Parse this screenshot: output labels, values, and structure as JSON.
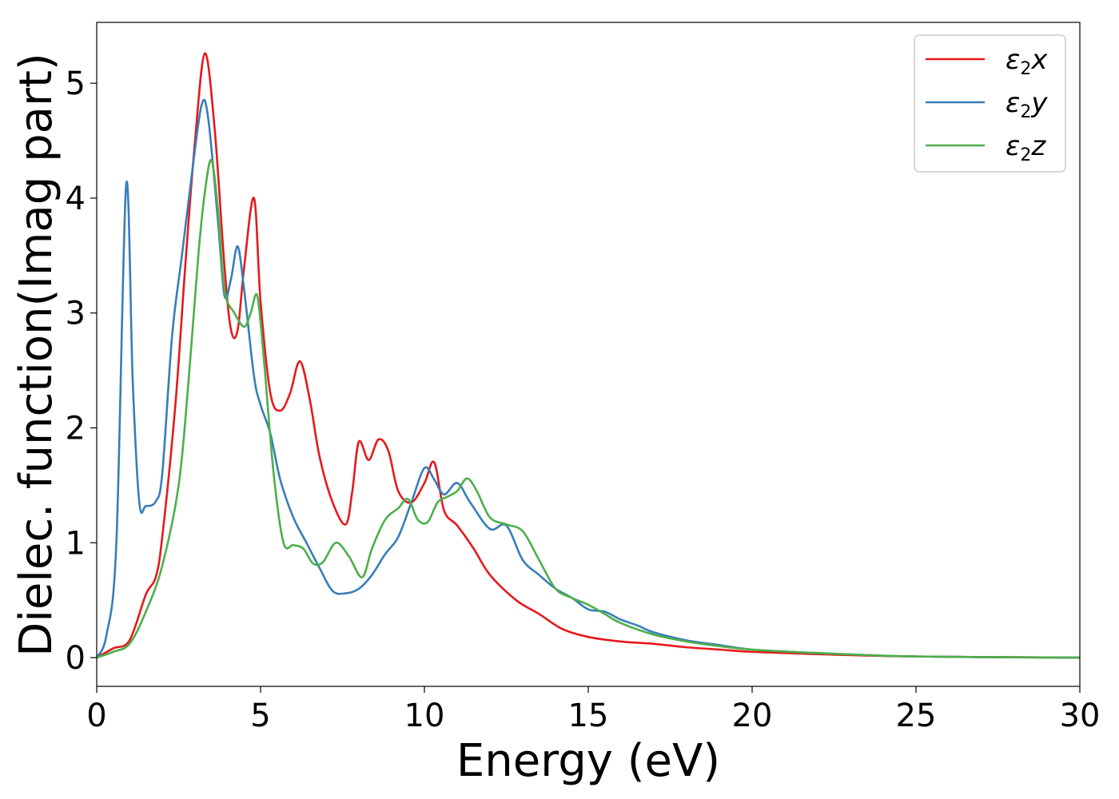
{
  "chart_data": {
    "type": "line",
    "title": "",
    "xlabel": "Energy (eV)",
    "ylabel": "Dielec. function(Imag part)",
    "xlim": [
      0,
      30
    ],
    "ylim": [
      -0.25,
      5.53
    ],
    "xticks": [
      0,
      5,
      10,
      15,
      20,
      25,
      30
    ],
    "yticks": [
      0,
      1,
      2,
      3,
      4,
      5
    ],
    "grid": false,
    "legend_position": "top-right",
    "series": [
      {
        "name": "ε2x",
        "legend_base": "ε",
        "legend_sub": "2",
        "legend_var": "x",
        "color": "#e41a1c",
        "x": [
          0,
          0.5,
          1.0,
          1.5,
          1.8,
          2.0,
          2.4,
          2.7,
          3.0,
          3.3,
          3.6,
          3.9,
          4.1,
          4.3,
          4.5,
          4.8,
          5.0,
          5.3,
          5.6,
          5.9,
          6.2,
          6.5,
          6.8,
          7.2,
          7.6,
          7.8,
          8.0,
          8.3,
          8.6,
          8.9,
          9.2,
          9.6,
          10.0,
          10.3,
          10.6,
          11.0,
          11.5,
          12.0,
          12.8,
          13.5,
          14.2,
          15.0,
          16.0,
          17.0,
          18.0,
          19.0,
          20.0,
          22.0,
          25.0,
          30.0
        ],
        "y": [
          0,
          0.08,
          0.15,
          0.55,
          0.7,
          1.05,
          2.2,
          3.4,
          4.5,
          5.26,
          4.6,
          3.4,
          2.85,
          2.85,
          3.4,
          4.0,
          3.1,
          2.3,
          2.15,
          2.3,
          2.58,
          2.25,
          1.75,
          1.35,
          1.16,
          1.45,
          1.88,
          1.72,
          1.9,
          1.8,
          1.45,
          1.35,
          1.52,
          1.7,
          1.28,
          1.15,
          0.95,
          0.72,
          0.5,
          0.38,
          0.25,
          0.18,
          0.14,
          0.12,
          0.09,
          0.07,
          0.05,
          0.03,
          0.01,
          0.0
        ]
      },
      {
        "name": "ε2y",
        "legend_base": "ε",
        "legend_sub": "2",
        "legend_var": "y",
        "color": "#377eb8",
        "x": [
          0,
          0.3,
          0.6,
          0.9,
          1.1,
          1.3,
          1.5,
          1.8,
          2.0,
          2.3,
          2.6,
          2.9,
          3.2,
          3.4,
          3.7,
          3.9,
          4.1,
          4.3,
          4.5,
          4.8,
          5.0,
          5.3,
          5.6,
          6.0,
          6.4,
          6.8,
          7.2,
          7.6,
          8.0,
          8.4,
          8.8,
          9.2,
          9.6,
          10.0,
          10.3,
          10.6,
          11.0,
          11.4,
          12.0,
          12.5,
          13.0,
          13.5,
          14.0,
          14.5,
          15.0,
          15.5,
          16.0,
          16.5,
          17.0,
          18.0,
          19.0,
          20.0,
          22.0,
          25.0,
          30.0
        ],
        "y": [
          0,
          0.2,
          1.0,
          4.12,
          2.4,
          1.35,
          1.32,
          1.36,
          1.6,
          2.8,
          3.5,
          4.2,
          4.81,
          4.7,
          3.8,
          3.15,
          3.3,
          3.58,
          3.2,
          2.45,
          2.2,
          1.95,
          1.55,
          1.22,
          1.0,
          0.78,
          0.58,
          0.56,
          0.6,
          0.72,
          0.9,
          1.05,
          1.35,
          1.65,
          1.55,
          1.42,
          1.52,
          1.35,
          1.12,
          1.15,
          0.85,
          0.72,
          0.6,
          0.52,
          0.42,
          0.4,
          0.33,
          0.28,
          0.22,
          0.15,
          0.11,
          0.07,
          0.04,
          0.01,
          0.0
        ]
      },
      {
        "name": "ε2z",
        "legend_base": "ε",
        "legend_sub": "2",
        "legend_var": "z",
        "color": "#4daf4a",
        "x": [
          0,
          0.5,
          1.0,
          1.5,
          2.0,
          2.5,
          2.8,
          3.1,
          3.3,
          3.5,
          3.7,
          3.9,
          4.2,
          4.5,
          4.7,
          4.9,
          5.1,
          5.4,
          5.7,
          6.0,
          6.3,
          6.6,
          6.9,
          7.3,
          7.7,
          8.1,
          8.4,
          8.8,
          9.2,
          9.5,
          9.8,
          10.1,
          10.4,
          10.7,
          11.0,
          11.3,
          11.6,
          12.0,
          12.5,
          13.0,
          13.5,
          14.0,
          14.5,
          15.0,
          15.5,
          16.0,
          17.0,
          18.0,
          19.0,
          20.0,
          22.0,
          25.0,
          30.0
        ],
        "y": [
          0,
          0.05,
          0.12,
          0.4,
          0.8,
          1.5,
          2.4,
          3.5,
          4.05,
          4.33,
          3.9,
          3.2,
          3.0,
          2.88,
          3.0,
          3.15,
          2.6,
          1.6,
          1.0,
          0.98,
          0.95,
          0.82,
          0.83,
          1.0,
          0.88,
          0.7,
          0.95,
          1.2,
          1.3,
          1.38,
          1.2,
          1.18,
          1.35,
          1.4,
          1.45,
          1.56,
          1.45,
          1.22,
          1.16,
          1.1,
          0.85,
          0.6,
          0.52,
          0.46,
          0.38,
          0.3,
          0.2,
          0.14,
          0.1,
          0.07,
          0.04,
          0.01,
          0.0
        ]
      }
    ]
  }
}
